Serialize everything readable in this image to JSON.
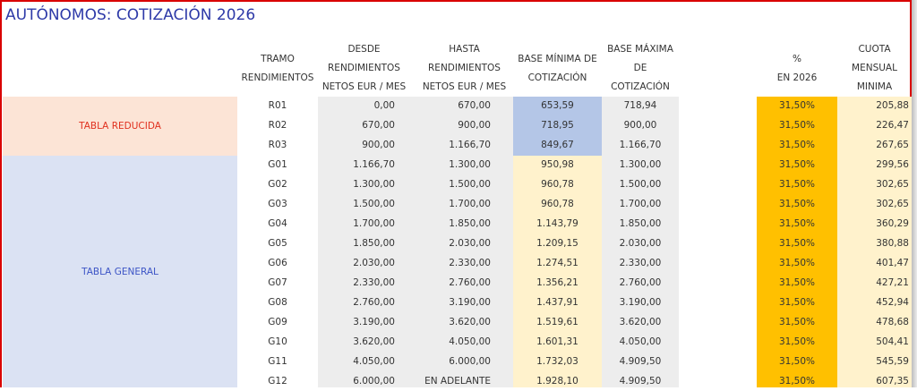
{
  "title": "AUTÓNOMOS: COTIZACIÓN 2026",
  "headers": {
    "tramo": [
      "TRAMO",
      "RENDIMIENTOS"
    ],
    "desde": [
      "DESDE",
      "RENDIMIENTOS",
      "NETOS EUR / MES"
    ],
    "hasta": [
      "HASTA",
      "RENDIMIENTOS",
      "NETOS EUR / MES"
    ],
    "base_min": [
      "BASE MÍNIMA DE",
      "COTIZACIÓN"
    ],
    "base_max": [
      "BASE MÁXIMA",
      "DE",
      "COTIZACIÓN"
    ],
    "pct": [
      "%",
      "EN 2026"
    ],
    "cuota": [
      "CUOTA",
      "MENSUAL",
      "MINIMA"
    ]
  },
  "groups": {
    "reducida": "TABLA REDUCIDA",
    "general": "TABLA GENERAL"
  },
  "colors": {
    "title": "#2e3aa8",
    "reducida_bg": "#fce4d6",
    "reducida_text": "#e0301e",
    "general_bg": "#dbe2f3",
    "general_text": "#3d55c6",
    "range_bg": "#ededed",
    "base_min_reducida_bg": "#b4c6e7",
    "base_min_general_bg": "#fff2cc",
    "pct_bg": "#ffc000",
    "cuota_bg": "#fff2cc"
  },
  "rows": [
    {
      "tramo": "R01",
      "desde": "0,00",
      "hasta": "670,00",
      "base_min": "653,59",
      "base_max": "718,94",
      "pct": "31,50%",
      "cuota": "205,88"
    },
    {
      "tramo": "R02",
      "desde": "670,00",
      "hasta": "900,00",
      "base_min": "718,95",
      "base_max": "900,00",
      "pct": "31,50%",
      "cuota": "226,47"
    },
    {
      "tramo": "R03",
      "desde": "900,00",
      "hasta": "1.166,70",
      "base_min": "849,67",
      "base_max": "1.166,70",
      "pct": "31,50%",
      "cuota": "267,65"
    },
    {
      "tramo": "G01",
      "desde": "1.166,70",
      "hasta": "1.300,00",
      "base_min": "950,98",
      "base_max": "1.300,00",
      "pct": "31,50%",
      "cuota": "299,56"
    },
    {
      "tramo": "G02",
      "desde": "1.300,00",
      "hasta": "1.500,00",
      "base_min": "960,78",
      "base_max": "1.500,00",
      "pct": "31,50%",
      "cuota": "302,65"
    },
    {
      "tramo": "G03",
      "desde": "1.500,00",
      "hasta": "1.700,00",
      "base_min": "960,78",
      "base_max": "1.700,00",
      "pct": "31,50%",
      "cuota": "302,65"
    },
    {
      "tramo": "G04",
      "desde": "1.700,00",
      "hasta": "1.850,00",
      "base_min": "1.143,79",
      "base_max": "1.850,00",
      "pct": "31,50%",
      "cuota": "360,29"
    },
    {
      "tramo": "G05",
      "desde": "1.850,00",
      "hasta": "2.030,00",
      "base_min": "1.209,15",
      "base_max": "2.030,00",
      "pct": "31,50%",
      "cuota": "380,88"
    },
    {
      "tramo": "G06",
      "desde": "2.030,00",
      "hasta": "2.330,00",
      "base_min": "1.274,51",
      "base_max": "2.330,00",
      "pct": "31,50%",
      "cuota": "401,47"
    },
    {
      "tramo": "G07",
      "desde": "2.330,00",
      "hasta": "2.760,00",
      "base_min": "1.356,21",
      "base_max": "2.760,00",
      "pct": "31,50%",
      "cuota": "427,21"
    },
    {
      "tramo": "G08",
      "desde": "2.760,00",
      "hasta": "3.190,00",
      "base_min": "1.437,91",
      "base_max": "3.190,00",
      "pct": "31,50%",
      "cuota": "452,94"
    },
    {
      "tramo": "G09",
      "desde": "3.190,00",
      "hasta": "3.620,00",
      "base_min": "1.519,61",
      "base_max": "3.620,00",
      "pct": "31,50%",
      "cuota": "478,68"
    },
    {
      "tramo": "G10",
      "desde": "3.620,00",
      "hasta": "4.050,00",
      "base_min": "1.601,31",
      "base_max": "4.050,00",
      "pct": "31,50%",
      "cuota": "504,41"
    },
    {
      "tramo": "G11",
      "desde": "4.050,00",
      "hasta": "6.000,00",
      "base_min": "1.732,03",
      "base_max": "4.909,50",
      "pct": "31,50%",
      "cuota": "545,59"
    },
    {
      "tramo": "G12",
      "desde": "6.000,00",
      "hasta": "EN ADELANTE",
      "base_min": "1.928,10",
      "base_max": "4.909,50",
      "pct": "31,50%",
      "cuota": "607,35"
    }
  ]
}
